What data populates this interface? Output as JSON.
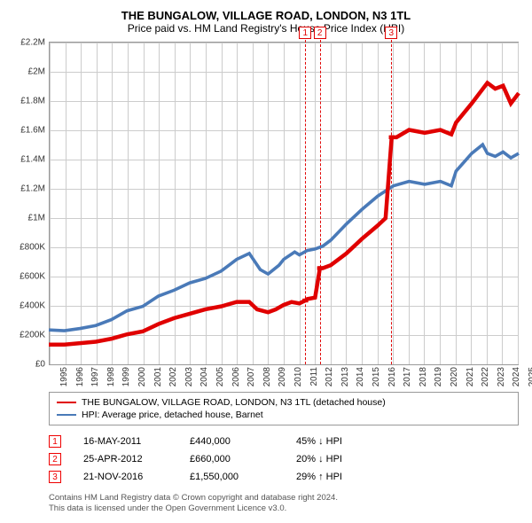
{
  "header": {
    "title": "THE BUNGALOW, VILLAGE ROAD, LONDON, N3 1TL",
    "subtitle": "Price paid vs. HM Land Registry's House Price Index (HPI)"
  },
  "chart": {
    "type": "line",
    "background_color": "#ffffff",
    "grid_color": "#cccccc",
    "border_color": "#999999",
    "title_fontsize": 13,
    "label_fontsize": 10,
    "ylim": [
      0,
      2200000
    ],
    "ytick_step": 200000,
    "yticks": [
      "£0",
      "£200K",
      "£400K",
      "£600K",
      "£800K",
      "£1M",
      "£1.2M",
      "£1.4M",
      "£1.6M",
      "£1.8M",
      "£2M",
      "£2.2M"
    ],
    "xlim": [
      1995,
      2025
    ],
    "xticks": [
      1995,
      1996,
      1997,
      1998,
      1999,
      2000,
      2001,
      2002,
      2003,
      2004,
      2005,
      2006,
      2007,
      2008,
      2009,
      2010,
      2011,
      2012,
      2013,
      2014,
      2015,
      2016,
      2017,
      2018,
      2019,
      2020,
      2021,
      2022,
      2023,
      2024,
      2025
    ],
    "series": [
      {
        "name": "THE BUNGALOW, VILLAGE ROAD, LONDON, N3 1TL (detached house)",
        "color": "#e00000",
        "line_width": 1.5,
        "data": [
          [
            1995,
            140000
          ],
          [
            1996,
            140000
          ],
          [
            1997,
            150000
          ],
          [
            1998,
            160000
          ],
          [
            1999,
            180000
          ],
          [
            2000,
            210000
          ],
          [
            2001,
            230000
          ],
          [
            2002,
            280000
          ],
          [
            2003,
            320000
          ],
          [
            2004,
            350000
          ],
          [
            2005,
            380000
          ],
          [
            2006,
            400000
          ],
          [
            2007,
            430000
          ],
          [
            2007.8,
            430000
          ],
          [
            2008.3,
            380000
          ],
          [
            2009,
            360000
          ],
          [
            2009.5,
            380000
          ],
          [
            2010,
            410000
          ],
          [
            2010.5,
            430000
          ],
          [
            2011,
            420000
          ],
          [
            2011.38,
            440000
          ],
          [
            2011.5,
            450000
          ],
          [
            2012,
            460000
          ],
          [
            2012.31,
            660000
          ],
          [
            2012.5,
            660000
          ],
          [
            2013,
            680000
          ],
          [
            2014,
            760000
          ],
          [
            2015,
            860000
          ],
          [
            2016,
            950000
          ],
          [
            2016.5,
            1000000
          ],
          [
            2016.89,
            1550000
          ],
          [
            2017.2,
            1550000
          ],
          [
            2018,
            1600000
          ],
          [
            2019,
            1580000
          ],
          [
            2020,
            1600000
          ],
          [
            2020.7,
            1570000
          ],
          [
            2021,
            1650000
          ],
          [
            2022,
            1780000
          ],
          [
            2022.5,
            1850000
          ],
          [
            2023,
            1920000
          ],
          [
            2023.5,
            1880000
          ],
          [
            2024,
            1900000
          ],
          [
            2024.5,
            1780000
          ],
          [
            2025,
            1850000
          ]
        ]
      },
      {
        "name": "HPI: Average price, detached house, Barnet",
        "color": "#4a7ab8",
        "line_width": 1.2,
        "data": [
          [
            1995,
            240000
          ],
          [
            1996,
            235000
          ],
          [
            1997,
            250000
          ],
          [
            1998,
            270000
          ],
          [
            1999,
            310000
          ],
          [
            2000,
            370000
          ],
          [
            2001,
            400000
          ],
          [
            2002,
            470000
          ],
          [
            2003,
            510000
          ],
          [
            2004,
            560000
          ],
          [
            2005,
            590000
          ],
          [
            2006,
            640000
          ],
          [
            2007,
            720000
          ],
          [
            2007.8,
            760000
          ],
          [
            2008.5,
            650000
          ],
          [
            2009,
            620000
          ],
          [
            2009.7,
            680000
          ],
          [
            2010,
            720000
          ],
          [
            2010.7,
            770000
          ],
          [
            2011,
            750000
          ],
          [
            2011.5,
            780000
          ],
          [
            2012,
            790000
          ],
          [
            2012.5,
            810000
          ],
          [
            2013,
            850000
          ],
          [
            2014,
            960000
          ],
          [
            2015,
            1060000
          ],
          [
            2016,
            1150000
          ],
          [
            2017,
            1220000
          ],
          [
            2018,
            1250000
          ],
          [
            2019,
            1230000
          ],
          [
            2020,
            1250000
          ],
          [
            2020.7,
            1220000
          ],
          [
            2021,
            1320000
          ],
          [
            2022,
            1440000
          ],
          [
            2022.7,
            1500000
          ],
          [
            2023,
            1440000
          ],
          [
            2023.5,
            1420000
          ],
          [
            2024,
            1450000
          ],
          [
            2024.5,
            1410000
          ],
          [
            2025,
            1440000
          ]
        ]
      }
    ],
    "markers": [
      {
        "id": "1",
        "x": 2011.38,
        "color": "#e00000"
      },
      {
        "id": "2",
        "x": 2012.31,
        "color": "#e00000"
      },
      {
        "id": "3",
        "x": 2016.89,
        "color": "#e00000"
      }
    ]
  },
  "legend": {
    "items": [
      {
        "color": "#e00000",
        "label": "THE BUNGALOW, VILLAGE ROAD, LONDON, N3 1TL (detached house)"
      },
      {
        "color": "#4a7ab8",
        "label": "HPI: Average price, detached house, Barnet"
      }
    ]
  },
  "events": [
    {
      "id": "1",
      "date": "16-MAY-2011",
      "price": "£440,000",
      "delta": "45% ↓ HPI"
    },
    {
      "id": "2",
      "date": "25-APR-2012",
      "price": "£660,000",
      "delta": "20% ↓ HPI"
    },
    {
      "id": "3",
      "date": "21-NOV-2016",
      "price": "£1,550,000",
      "delta": "29% ↑ HPI"
    }
  ],
  "footer": {
    "line1": "Contains HM Land Registry data © Crown copyright and database right 2024.",
    "line2": "This data is licensed under the Open Government Licence v3.0."
  }
}
